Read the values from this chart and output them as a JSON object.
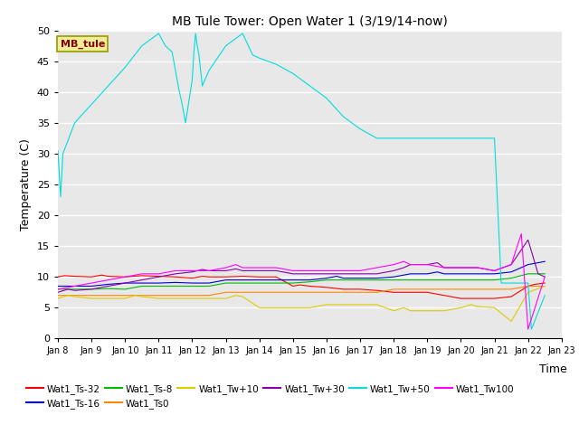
{
  "title": "MB Tule Tower: Open Water 1 (3/19/14-now)",
  "xlabel": "Time",
  "ylabel": "Temperature (C)",
  "ylim": [
    0,
    50
  ],
  "yticks": [
    0,
    5,
    10,
    15,
    20,
    25,
    30,
    35,
    40,
    45,
    50
  ],
  "xtick_labels": [
    "Jan 8",
    "Jan 9",
    "Jan 10",
    "Jan 11",
    "Jan 12",
    "Jan 13",
    "Jan 14",
    "Jan 15",
    "Jan 16",
    "Jan 17",
    "Jan 18",
    "Jan 19",
    "Jan 20",
    "Jan 21",
    "Jan 22",
    "Jan 23"
  ],
  "bg_color": "#e8e8e8",
  "grid_color": "#ffffff",
  "figsize": [
    6.4,
    4.8
  ],
  "dpi": 100,
  "series": [
    {
      "name": "Wat1_Ts-32",
      "color": "#ff0000",
      "x": [
        0,
        0.2,
        0.5,
        1,
        1.3,
        1.5,
        2,
        2.5,
        3,
        3.5,
        4,
        4.3,
        4.5,
        5,
        5.5,
        6,
        6.5,
        7,
        7.2,
        7.5,
        8,
        8.5,
        9,
        9.5,
        10,
        10.5,
        11,
        11.5,
        12,
        12.5,
        13,
        13.5,
        14,
        14.2,
        14.5
      ],
      "y": [
        10.0,
        10.2,
        10.1,
        10.0,
        10.3,
        10.1,
        10.0,
        10.2,
        10.1,
        10.0,
        9.8,
        10.1,
        10.0,
        10.0,
        10.1,
        10.0,
        10.0,
        8.5,
        8.7,
        8.5,
        8.3,
        8.0,
        8.0,
        7.8,
        7.5,
        7.5,
        7.5,
        7.0,
        6.5,
        6.5,
        6.5,
        6.8,
        8.5,
        8.8,
        9.0
      ]
    },
    {
      "name": "Wat1_Ts-16",
      "color": "#0000cc",
      "x": [
        0,
        0.5,
        1,
        1.5,
        2,
        2.5,
        3,
        3.5,
        4,
        4.5,
        5,
        5.5,
        6,
        6.5,
        7,
        7.5,
        8,
        8.3,
        8.5,
        9,
        9.5,
        10,
        10.5,
        11,
        11.3,
        11.5,
        12,
        12.5,
        13,
        13.5,
        14,
        14.5
      ],
      "y": [
        8.5,
        8.5,
        8.5,
        8.8,
        9.0,
        9.0,
        9.0,
        9.1,
        9.0,
        9.0,
        9.5,
        9.5,
        9.5,
        9.5,
        9.5,
        9.5,
        9.8,
        10.1,
        9.8,
        9.8,
        9.8,
        10.0,
        10.5,
        10.5,
        10.8,
        10.5,
        10.5,
        10.5,
        10.5,
        10.8,
        12.0,
        12.5
      ]
    },
    {
      "name": "Wat1_Ts-8",
      "color": "#00bb00",
      "x": [
        0,
        0.5,
        1,
        1.5,
        2,
        2.5,
        3,
        3.5,
        4,
        4.5,
        5,
        5.5,
        6,
        6.5,
        7,
        7.5,
        8,
        8.5,
        9,
        9.5,
        10,
        10.5,
        11,
        11.5,
        12,
        12.5,
        13,
        13.5,
        14,
        14.5
      ],
      "y": [
        8.0,
        8.0,
        8.0,
        8.1,
        8.0,
        8.5,
        8.5,
        8.5,
        8.5,
        8.5,
        9.0,
        9.0,
        9.0,
        9.0,
        9.0,
        9.2,
        9.5,
        9.5,
        9.5,
        9.5,
        9.5,
        9.5,
        9.5,
        9.5,
        9.5,
        9.5,
        9.5,
        9.8,
        10.5,
        10.5
      ]
    },
    {
      "name": "Wat1_Ts0",
      "color": "#ff8800",
      "x": [
        0,
        0.5,
        1,
        1.5,
        2,
        2.5,
        3,
        3.5,
        4,
        4.5,
        5,
        5.5,
        6,
        6.5,
        7,
        7.5,
        8,
        8.5,
        9,
        9.5,
        10,
        10.5,
        11,
        11.5,
        12,
        12.5,
        13,
        13.5,
        14,
        14.5
      ],
      "y": [
        7.0,
        7.0,
        7.0,
        7.0,
        7.0,
        7.0,
        7.0,
        7.0,
        7.0,
        7.0,
        7.5,
        7.5,
        7.5,
        7.5,
        7.5,
        7.5,
        7.5,
        7.5,
        7.5,
        7.5,
        8.0,
        8.0,
        8.0,
        8.0,
        8.0,
        8.0,
        8.0,
        8.0,
        8.5,
        8.5
      ]
    },
    {
      "name": "Wat1_Tw+10",
      "color": "#ddcc00",
      "x": [
        0,
        0.3,
        0.5,
        1,
        1.5,
        2,
        2.3,
        2.5,
        3,
        3.5,
        4,
        4.5,
        5,
        5.3,
        5.5,
        6,
        6.5,
        7,
        7.5,
        8,
        8.5,
        9,
        9.5,
        10,
        10.3,
        10.5,
        11,
        11.5,
        12,
        12.3,
        12.5,
        13,
        13.5,
        14,
        14.5
      ],
      "y": [
        6.5,
        7.0,
        6.8,
        6.5,
        6.5,
        6.5,
        7.0,
        6.8,
        6.5,
        6.5,
        6.5,
        6.5,
        6.5,
        7.0,
        6.8,
        5.0,
        5.0,
        5.0,
        5.0,
        5.5,
        5.5,
        5.5,
        5.5,
        4.5,
        5.0,
        4.5,
        4.5,
        4.5,
        5.0,
        5.5,
        5.2,
        5.0,
        2.8,
        7.5,
        8.5
      ]
    },
    {
      "name": "Wat1_Tw+30",
      "color": "#8800aa",
      "x": [
        0,
        0.3,
        0.5,
        1,
        1.5,
        2,
        2.5,
        3,
        3.5,
        4,
        4.3,
        4.5,
        5,
        5.3,
        5.5,
        6,
        6.5,
        7,
        7.5,
        8,
        8.5,
        9,
        9.5,
        10,
        10.3,
        10.5,
        11,
        11.3,
        11.5,
        12,
        12.5,
        13,
        13.5,
        14,
        14.3,
        14.5
      ],
      "y": [
        7.5,
        8.0,
        7.8,
        8.0,
        8.5,
        9.0,
        9.5,
        10.0,
        10.5,
        10.8,
        11.2,
        11.0,
        11.0,
        11.3,
        11.0,
        11.0,
        11.0,
        10.5,
        10.5,
        10.5,
        10.5,
        10.5,
        10.5,
        11.0,
        11.5,
        12.0,
        12.0,
        12.3,
        11.5,
        11.5,
        11.5,
        11.0,
        12.0,
        16.0,
        10.5,
        10.0
      ]
    },
    {
      "name": "Wat1_Tw+50",
      "color": "#00dddd",
      "x": [
        0,
        0.08,
        0.15,
        0.5,
        1,
        1.5,
        2,
        2.5,
        3,
        3.2,
        3.4,
        3.6,
        3.7,
        3.8,
        3.9,
        4.0,
        4.05,
        4.1,
        4.15,
        4.2,
        4.3,
        4.5,
        5,
        5.5,
        5.8,
        6.0,
        6.5,
        7,
        7.5,
        8,
        8.5,
        9,
        9.5,
        10,
        10.5,
        11,
        11.5,
        12,
        12.5,
        13,
        13.15,
        13.2,
        13.5,
        14,
        14.1,
        14.5
      ],
      "y": [
        30.5,
        23.0,
        30.0,
        35.0,
        38.0,
        41.0,
        44.0,
        47.5,
        49.5,
        47.5,
        46.5,
        40.5,
        38.0,
        35.0,
        38.5,
        42.0,
        46.5,
        49.5,
        47.5,
        46.0,
        41.0,
        43.5,
        47.5,
        49.5,
        46.0,
        45.5,
        44.5,
        43.0,
        41.0,
        39.0,
        36.0,
        34.0,
        32.5,
        32.5,
        32.5,
        32.5,
        32.5,
        32.5,
        32.5,
        32.5,
        15.0,
        9.0,
        9.0,
        9.0,
        1.5,
        7.0
      ]
    },
    {
      "name": "Wat1_Tw100",
      "color": "#ff00ff",
      "x": [
        0,
        0.5,
        1,
        1.5,
        2,
        2.5,
        3,
        3.5,
        4,
        4.5,
        5,
        5.3,
        5.5,
        6,
        6.5,
        7,
        7.5,
        8,
        8.5,
        9,
        9.5,
        10,
        10.3,
        10.5,
        11,
        11.5,
        12,
        12.5,
        13,
        13.5,
        13.8,
        14.0,
        14.5
      ],
      "y": [
        8.0,
        8.5,
        9.0,
        9.5,
        10.0,
        10.5,
        10.5,
        11.0,
        11.0,
        11.0,
        11.5,
        12.0,
        11.5,
        11.5,
        11.5,
        11.0,
        11.0,
        11.0,
        11.0,
        11.0,
        11.5,
        12.0,
        12.5,
        12.0,
        12.0,
        11.5,
        11.5,
        11.5,
        11.0,
        12.0,
        17.0,
        1.5,
        10.0
      ]
    }
  ],
  "annotation": {
    "text": "MB_tule",
    "fontsize": 8,
    "color": "#880000",
    "bg": "#eeee99",
    "border_color": "#999900"
  },
  "legend_order": [
    "Wat1_Ts-32",
    "Wat1_Ts-16",
    "Wat1_Ts-8",
    "Wat1_Ts0",
    "Wat1_Tw+10",
    "Wat1_Tw+30",
    "Wat1_Tw+50",
    "Wat1_Tw100"
  ]
}
